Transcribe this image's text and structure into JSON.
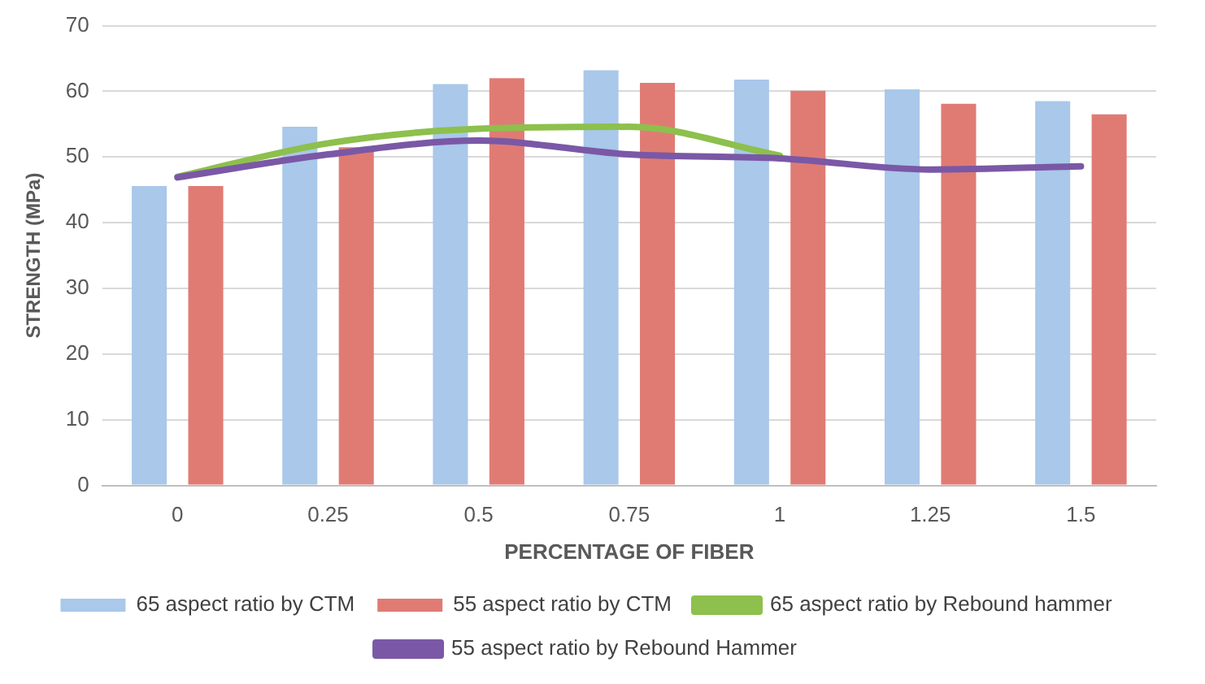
{
  "chart_data": {
    "type": "bar",
    "xlabel": "PERCENTAGE OF FIBER",
    "ylabel": "STRENGTH (MPa)",
    "categories": [
      "0",
      "0.25",
      "0.5",
      "0.75",
      "1",
      "1.25",
      "1.5"
    ],
    "series": [
      {
        "name": "65 aspect ratio by CTM",
        "color": "#a9c8ea",
        "values": [
          45.6,
          54.6,
          61.1,
          63.2,
          61.8,
          60.3,
          58.5
        ]
      },
      {
        "name": "55 aspect ratio by CTM",
        "color": "#e07b74",
        "values": [
          45.6,
          51.5,
          62.0,
          61.3,
          60.1,
          58.1,
          56.5
        ]
      },
      {
        "name": "65 aspect ratio by Rebound hammer",
        "type": "line",
        "color": "#8dc04c",
        "values": [
          47.0,
          52.1,
          54.3,
          54.6,
          50.2,
          null,
          null
        ]
      },
      {
        "name": "55 aspect ratio by Rebound Hammer",
        "type": "line",
        "color": "#7a58a6",
        "values": [
          46.9,
          50.4,
          52.5,
          50.4,
          49.8,
          48.1,
          48.6
        ]
      }
    ],
    "ylim": [
      0,
      70
    ],
    "yticks": [
      0,
      10,
      20,
      30,
      40,
      50,
      60,
      70
    ],
    "grid": "y",
    "legend": "bottom",
    "marker": "none"
  }
}
